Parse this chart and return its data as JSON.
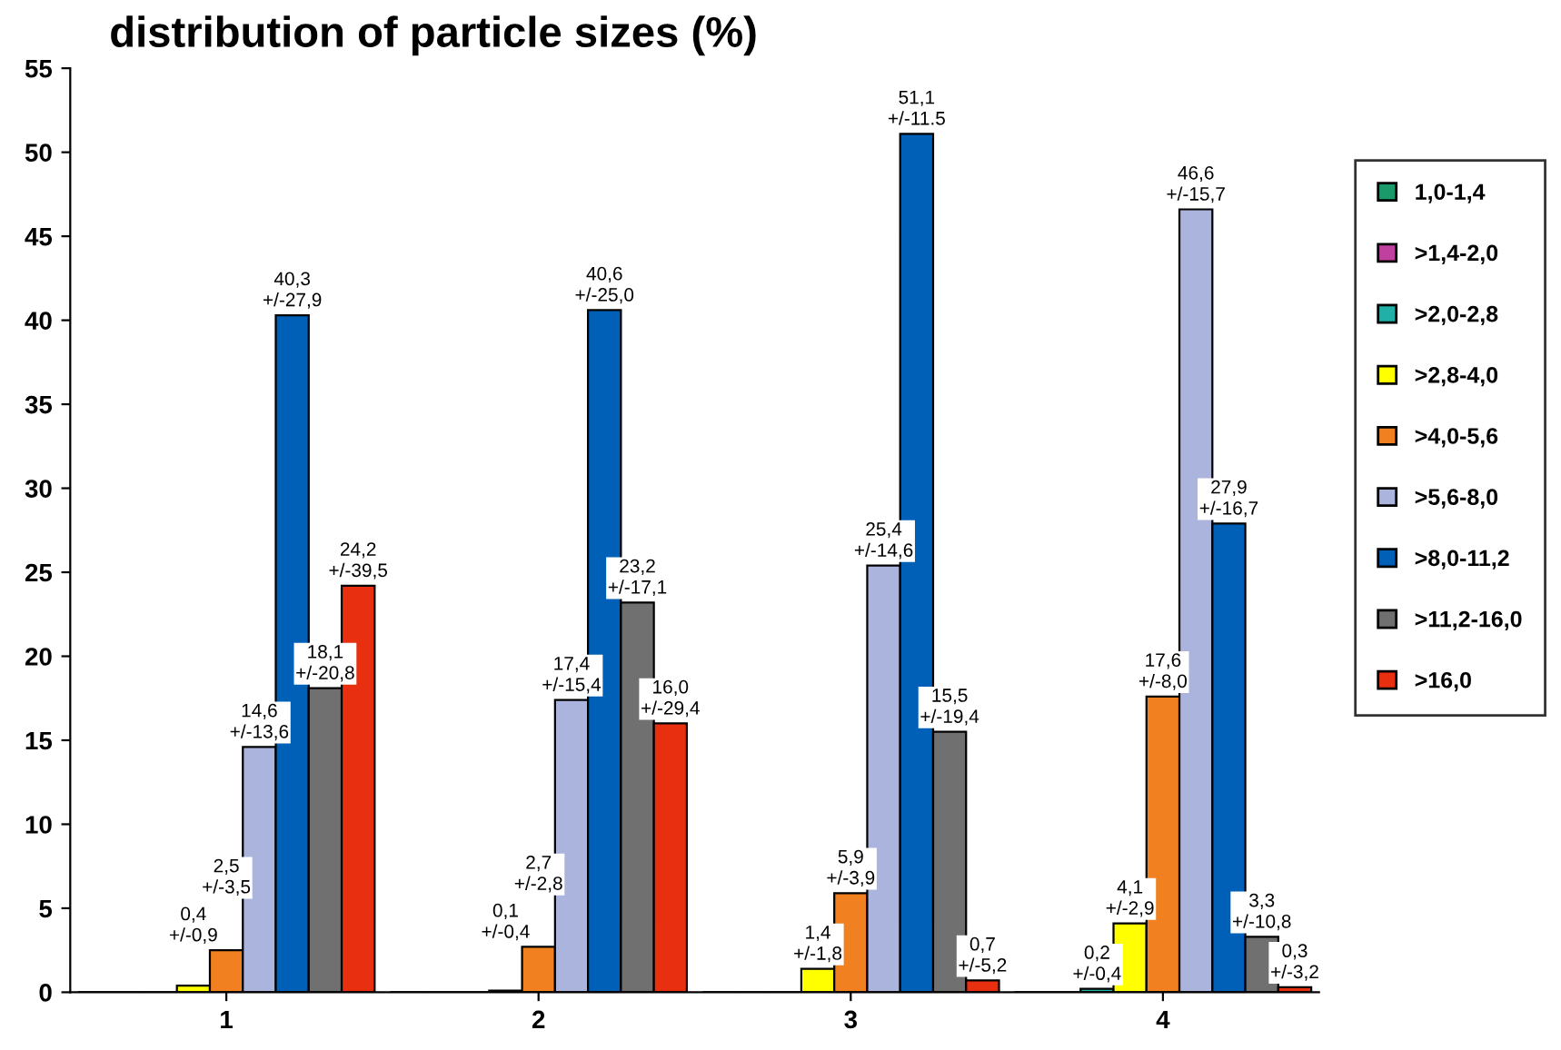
{
  "chart_data": {
    "type": "bar",
    "title": "distribution of particle sizes (%)",
    "categories": [
      "1",
      "2",
      "3",
      "4"
    ],
    "ylim": [
      0,
      55
    ],
    "yticks": [
      0,
      5,
      10,
      15,
      20,
      25,
      30,
      35,
      40,
      45,
      50,
      55
    ],
    "grid": false,
    "legend": "right",
    "series": [
      {
        "name": "1,0-1,4",
        "color": "#1a9a6a",
        "values": [
          0,
          0,
          0,
          0
        ],
        "value_labels": [
          null,
          null,
          null,
          null
        ]
      },
      {
        "name": ">1,4-2,0",
        "color": "#c040a0",
        "values": [
          0,
          0,
          0,
          0
        ],
        "value_labels": [
          null,
          null,
          null,
          null
        ]
      },
      {
        "name": ">2,0-2,8",
        "color": "#20b0a8",
        "values": [
          0,
          0,
          0,
          0.2
        ],
        "value_labels": [
          null,
          null,
          null,
          "0,2\n+/-0,4"
        ]
      },
      {
        "name": ">2,8-4,0",
        "color": "#ffff00",
        "values": [
          0.4,
          0.1,
          1.4,
          4.1
        ],
        "value_labels": [
          "0,4\n+/-0,9",
          "0,1\n+/-0,4",
          "1,4\n+/-1,8",
          "4,1\n+/-2,9"
        ]
      },
      {
        "name": ">4,0-5,6",
        "color": "#f08020",
        "values": [
          2.5,
          2.7,
          5.9,
          17.6
        ],
        "value_labels": [
          "2,5\n+/-3,5",
          "2,7\n+/-2,8",
          "5,9\n+/-3,9",
          "17,6\n+/-8,0"
        ]
      },
      {
        "name": ">5,6-8,0",
        "color": "#aab4dd",
        "values": [
          14.6,
          17.4,
          25.4,
          46.6
        ],
        "value_labels": [
          "14,6\n+/-13,6",
          "17,4\n+/-15,4",
          "25,4\n+/-14,6",
          "46,6\n+/-15,7"
        ]
      },
      {
        "name": ">8,0-11,2",
        "color": "#0060b8",
        "values": [
          40.3,
          40.6,
          51.1,
          27.9
        ],
        "value_labels": [
          "40,3\n+/-27,9",
          "40,6\n+/-25,0",
          "51,1\n+/-11.5",
          "27,9\n+/-16,7"
        ]
      },
      {
        "name": ">11,2-16,0",
        "color": "#707070",
        "values": [
          18.1,
          23.2,
          15.5,
          3.3
        ],
        "value_labels": [
          "18,1\n+/-20,8",
          "23,2\n+/-17,1",
          "15,5\n+/-19,4",
          "3,3\n+/-10,8"
        ]
      },
      {
        "name": ">16,0",
        "color": "#e83010",
        "values": [
          24.2,
          16.0,
          0.7,
          0.3
        ],
        "value_labels": [
          "24,2\n+/-39,5",
          "16,0\n+/-29,4",
          "0,7\n+/-5,2",
          "0,3\n+/-3,2"
        ]
      }
    ]
  }
}
